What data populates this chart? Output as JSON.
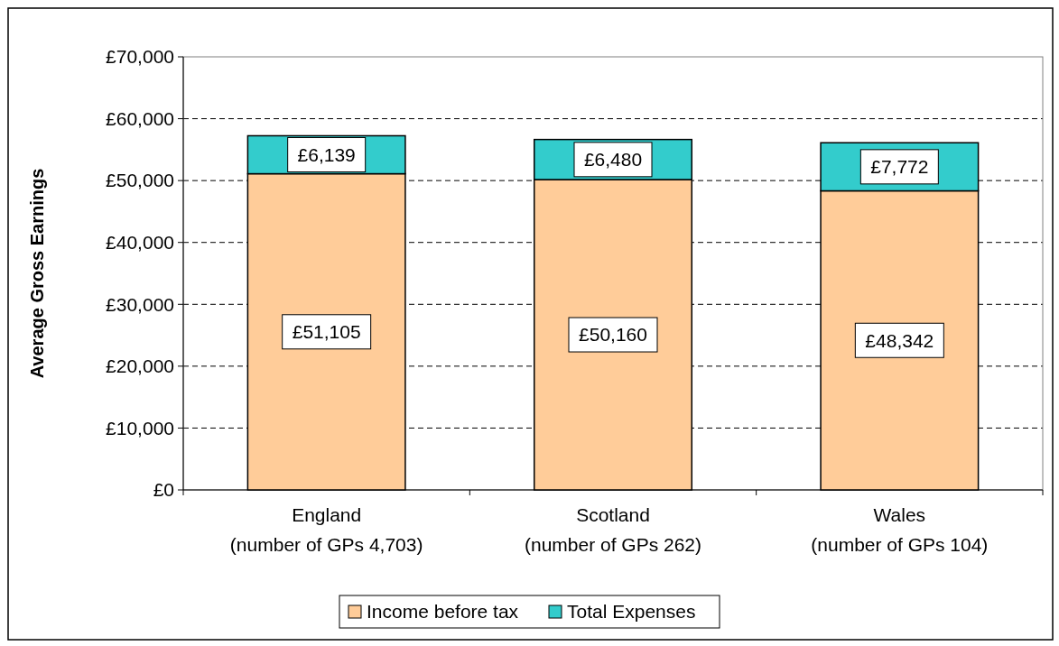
{
  "chart_data": {
    "type": "bar",
    "stacked": true,
    "ylabel": "Average Gross Earnings",
    "categories": [
      "England\n(number of GPs 4,703)",
      "Scotland\n(number of GPs 262)",
      "Wales\n(number of GPs 104)"
    ],
    "series": [
      {
        "name": "Income before tax",
        "color": "#ffcc99",
        "values": [
          51105,
          50160,
          48342
        ],
        "value_labels": [
          "£51,105",
          "£50,160",
          "£48,342"
        ]
      },
      {
        "name": "Total Expenses",
        "color": "#33cccc",
        "values": [
          6139,
          6480,
          7772
        ],
        "value_labels": [
          "£6,139",
          "£6,480",
          "£7,772"
        ]
      }
    ],
    "ylim": [
      0,
      70000
    ],
    "yticks": [
      {
        "value": 0,
        "label": "£0"
      },
      {
        "value": 10000,
        "label": "£10,000"
      },
      {
        "value": 20000,
        "label": "£20,000"
      },
      {
        "value": 30000,
        "label": "£30,000"
      },
      {
        "value": 40000,
        "label": "£40,000"
      },
      {
        "value": 50000,
        "label": "£50,000"
      },
      {
        "value": 60000,
        "label": "£60,000"
      },
      {
        "value": 70000,
        "label": "£70,000"
      }
    ],
    "grid": "y",
    "legend": "bottom"
  }
}
